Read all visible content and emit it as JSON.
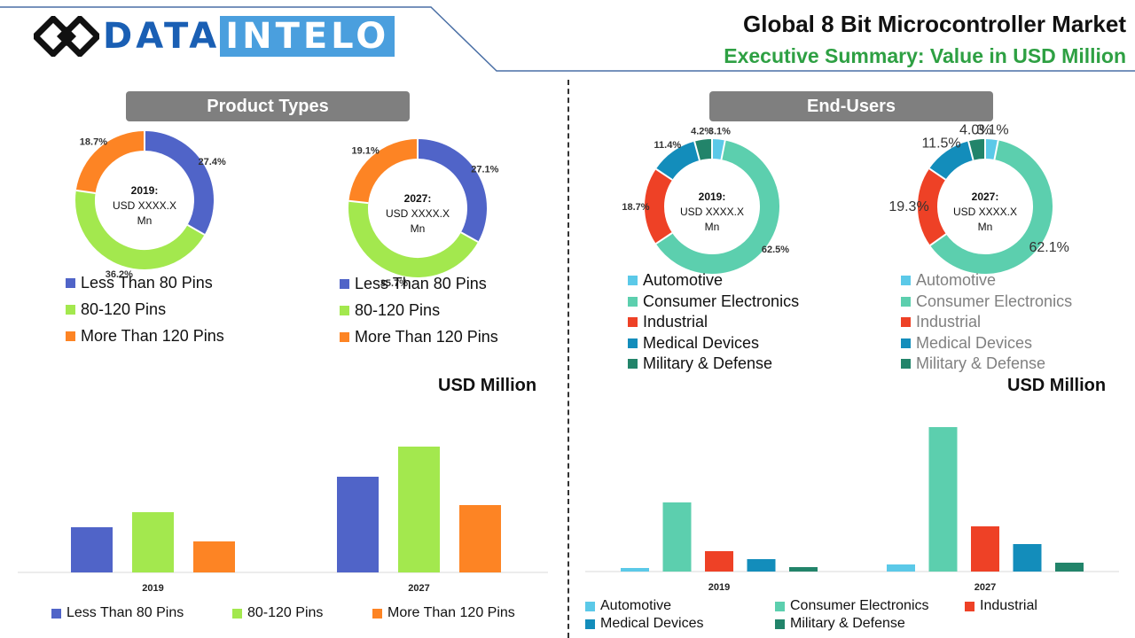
{
  "header": {
    "logo_part1": "DATA",
    "logo_part2": "INTELO",
    "title": "Global 8 Bit Microcontroller Market",
    "subtitle": "Executive Summary: Value in USD Million"
  },
  "sections": {
    "product_types": "Product Types",
    "end_users": "End-Users",
    "usd_label": "USD Million"
  },
  "donut_center": {
    "y2019": "2019:",
    "y2027": "2027:",
    "value": "USD XXXX.X",
    "unit": "Mn"
  },
  "product_legend": [
    {
      "label": "Less Than 80 Pins",
      "color": "#5064c8"
    },
    {
      "label": "80-120 Pins",
      "color": "#a3e84e"
    },
    {
      "label": "More Than 120 Pins",
      "color": "#fd8424"
    }
  ],
  "enduser_legend": [
    {
      "label": "Automotive",
      "color": "#5bc9e8"
    },
    {
      "label": "Consumer Electronics",
      "color": "#5ccfae"
    },
    {
      "label": "Industrial",
      "color": "#ee4126"
    },
    {
      "label": "Medical Devices",
      "color": "#138dbb"
    },
    {
      "label": "Military & Defense",
      "color": "#22846a"
    }
  ],
  "chart_data": [
    {
      "type": "pie",
      "title": "2019",
      "labels": [
        "Less Than 80 Pins",
        "80-120 Pins",
        "More Than 120 Pins"
      ],
      "values": [
        27.4,
        36.2,
        18.7
      ],
      "value_labels": [
        "27.4%",
        "36.2%",
        "18.7%"
      ]
    },
    {
      "type": "pie",
      "title": "2027",
      "labels": [
        "Less Than 80 Pins",
        "80-120 Pins",
        "More Than 120 Pins"
      ],
      "values": [
        27.1,
        35.7,
        19.1
      ],
      "value_labels": [
        "27.1%",
        "35.7%",
        "19.1%"
      ]
    },
    {
      "type": "pie",
      "title": "2019",
      "labels": [
        "Automotive",
        "Consumer Electronics",
        "Industrial",
        "Medical Devices",
        "Military & Defense"
      ],
      "values": [
        3.1,
        62.5,
        18.7,
        11.4,
        4.2
      ],
      "value_labels": [
        "3.1%",
        "62.5%",
        "18.7%",
        "11.4%",
        "4.2%"
      ]
    },
    {
      "type": "pie",
      "title": "2027",
      "labels": [
        "Automotive",
        "Consumer Electronics",
        "Industrial",
        "Medical Devices",
        "Military & Defense"
      ],
      "values": [
        3.1,
        62.1,
        19.3,
        11.5,
        4.0
      ],
      "value_labels": [
        "3.1%",
        "62.1%",
        "19.3%",
        "11.5%",
        "4.0%"
      ]
    },
    {
      "type": "bar",
      "categories": [
        "2019",
        "2027"
      ],
      "series": [
        {
          "name": "Less Than 80 Pins",
          "values": [
            51,
            108
          ]
        },
        {
          "name": "80-120 Pins",
          "values": [
            68,
            142
          ]
        },
        {
          "name": "More Than 120 Pins",
          "values": [
            35,
            76
          ]
        }
      ],
      "ylim": [
        0,
        160
      ]
    },
    {
      "type": "bar",
      "categories": [
        "2019",
        "2027"
      ],
      "series": [
        {
          "name": "Automotive",
          "values": [
            4,
            8
          ]
        },
        {
          "name": "Consumer Electronics",
          "values": [
            78,
            163
          ]
        },
        {
          "name": "Industrial",
          "values": [
            23,
            51
          ]
        },
        {
          "name": "Medical Devices",
          "values": [
            14,
            31
          ]
        },
        {
          "name": "Military & Defense",
          "values": [
            5,
            10
          ]
        }
      ],
      "ylim": [
        0,
        170
      ]
    }
  ]
}
